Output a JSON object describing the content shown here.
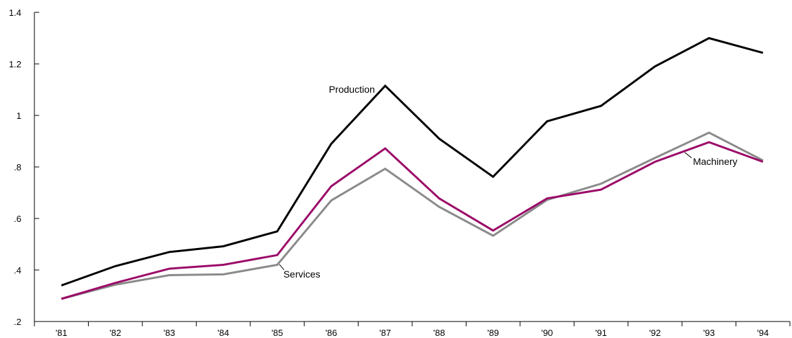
{
  "chart_data": {
    "type": "line",
    "title": "",
    "xlabel": "",
    "ylabel": "",
    "categories": [
      "'81",
      "'82",
      "'83",
      "'84",
      "'85",
      "'86",
      "'87",
      "'88",
      "'89",
      "'90",
      "'91",
      "'92",
      "'93",
      "'94"
    ],
    "ylim": [
      0.2,
      1.4
    ],
    "yticks": [
      0.2,
      0.4,
      0.6,
      0.8,
      1.0,
      1.2,
      1.4
    ],
    "ytick_labels": [
      ".2",
      ".4",
      ".6",
      ".8",
      "1",
      "1.2",
      "1.4"
    ],
    "grid": false,
    "legend": "none",
    "series": [
      {
        "name": "Production",
        "color": "#000000",
        "values": [
          0.34,
          0.415,
          0.47,
          0.492,
          0.55,
          0.89,
          1.115,
          0.91,
          0.762,
          0.977,
          1.037,
          1.19,
          1.3,
          1.243
        ]
      },
      {
        "name": "Machinery",
        "color": "#9b0a68",
        "values": [
          0.288,
          0.35,
          0.405,
          0.42,
          0.458,
          0.725,
          0.872,
          0.678,
          0.553,
          0.678,
          0.712,
          0.82,
          0.896,
          0.82
        ]
      },
      {
        "name": "Services",
        "color": "#8a8a8a",
        "values": [
          0.288,
          0.343,
          0.38,
          0.383,
          0.42,
          0.67,
          0.793,
          0.645,
          0.533,
          0.672,
          0.735,
          0.835,
          0.933,
          0.825
        ]
      }
    ],
    "annotations": [
      {
        "text": "Production",
        "series": 0,
        "anchor": "label-left"
      },
      {
        "text": "Machinery",
        "series": 1,
        "anchor": "label-right"
      },
      {
        "text": "Services",
        "series": 2,
        "anchor": "label-right"
      }
    ]
  }
}
